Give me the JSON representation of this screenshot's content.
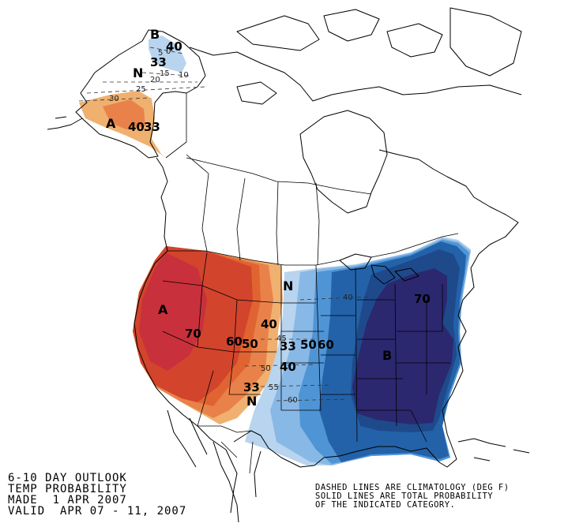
{
  "title_lines": {
    "line1": "6-10 DAY OUTLOOK",
    "line2": "TEMP PROBABILITY",
    "line3": "MADE  1 APR 2007",
    "line4": "VALID  APR 07 - 11, 2007"
  },
  "note_lines": {
    "line1": "DASHED LINES ARE CLIMATOLOGY (DEG F)",
    "line2": "SOLID LINES ARE TOTAL PROBABILITY",
    "line3": "OF THE INDICATED CATEGORY."
  },
  "colors": {
    "above_33": "#f0b070",
    "above_40": "#e9824a",
    "above_50": "#e06432",
    "above_60": "#d2442c",
    "above_70": "#c8303c",
    "below_33": "#b8d4ee",
    "below_40": "#88b8e6",
    "below_50": "#4f95d6",
    "below_60": "#2362a8",
    "below_70": "#1e4a8c",
    "below_core": "#2b2870"
  },
  "category_labels": {
    "alaska_below": "B",
    "alaska_normal": "N",
    "alaska_above": "A",
    "west_above": "A",
    "plains_normal": "N",
    "southwest_normal": "N",
    "east_below": "B"
  },
  "probability_labels": {
    "ak_b40": "40",
    "ak_b33": "33",
    "ak_a40": "40",
    "ak_a33": "33",
    "w70": "70",
    "w60": "60",
    "w50": "50",
    "w40": "40",
    "w33": "33",
    "e33": "33",
    "e50": "50",
    "e60": "60",
    "e40": "40",
    "e70": "70"
  },
  "climatology_labels": {
    "c5": "5",
    "c0": "0",
    "c15": "15",
    "c10": "10",
    "c20": "20",
    "c25": "25",
    "c30": "30",
    "c40": "40",
    "c45": "45",
    "c50": "50",
    "c55": "55",
    "c60": "60"
  }
}
